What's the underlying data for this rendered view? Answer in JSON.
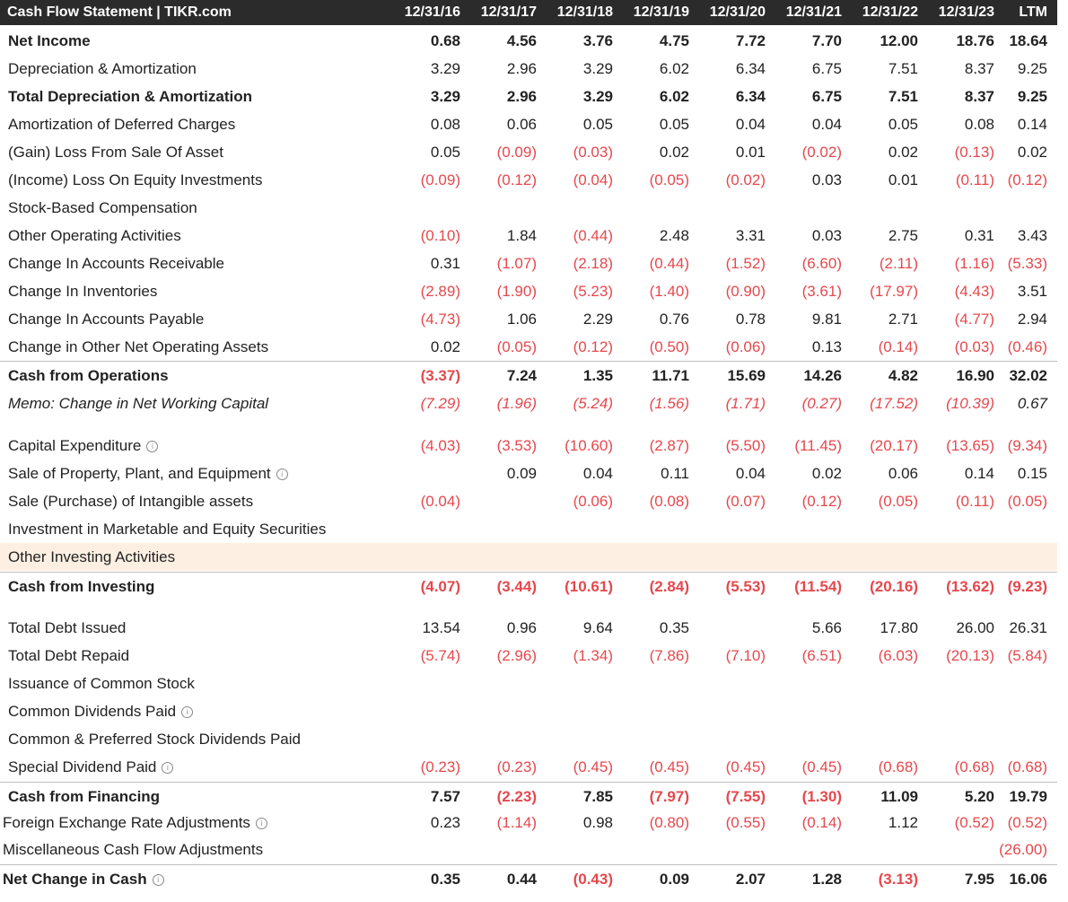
{
  "header": {
    "title": "Cash Flow Statement | TIKR.com",
    "periods": [
      "12/31/16",
      "12/31/17",
      "12/31/18",
      "12/31/19",
      "12/31/20",
      "12/31/21",
      "12/31/22",
      "12/31/23",
      "LTM"
    ]
  },
  "colors": {
    "header_bg": "#2b2b2b",
    "negative": "#e5484d",
    "highlight_row": "#fdf0e3"
  },
  "rows": [
    {
      "label": "Net Income",
      "style": "bold",
      "values": [
        "0.68",
        "4.56",
        "3.76",
        "4.75",
        "7.72",
        "7.70",
        "12.00",
        "18.76",
        "18.64"
      ]
    },
    {
      "label": "Depreciation & Amortization",
      "values": [
        "3.29",
        "2.96",
        "3.29",
        "6.02",
        "6.34",
        "6.75",
        "7.51",
        "8.37",
        "9.25"
      ]
    },
    {
      "label": "Total Depreciation & Amortization",
      "style": "bold",
      "values": [
        "3.29",
        "2.96",
        "3.29",
        "6.02",
        "6.34",
        "6.75",
        "7.51",
        "8.37",
        "9.25"
      ]
    },
    {
      "label": "Amortization of Deferred Charges",
      "values": [
        "0.08",
        "0.06",
        "0.05",
        "0.05",
        "0.04",
        "0.04",
        "0.05",
        "0.08",
        "0.14"
      ]
    },
    {
      "label": "(Gain) Loss From Sale Of Asset",
      "values": [
        "0.05",
        "(0.09)",
        "(0.03)",
        "0.02",
        "0.01",
        "(0.02)",
        "0.02",
        "(0.13)",
        "0.02"
      ]
    },
    {
      "label": "(Income) Loss On Equity Investments",
      "values": [
        "(0.09)",
        "(0.12)",
        "(0.04)",
        "(0.05)",
        "(0.02)",
        "0.03",
        "0.01",
        "(0.11)",
        "(0.12)"
      ]
    },
    {
      "label": "Stock-Based Compensation",
      "values": [
        "",
        "",
        "",
        "",
        "",
        "",
        "",
        "",
        ""
      ]
    },
    {
      "label": "Other Operating Activities",
      "values": [
        "(0.10)",
        "1.84",
        "(0.44)",
        "2.48",
        "3.31",
        "0.03",
        "2.75",
        "0.31",
        "3.43"
      ]
    },
    {
      "label": "Change In Accounts Receivable",
      "values": [
        "0.31",
        "(1.07)",
        "(2.18)",
        "(0.44)",
        "(1.52)",
        "(6.60)",
        "(2.11)",
        "(1.16)",
        "(5.33)"
      ]
    },
    {
      "label": "Change In Inventories",
      "values": [
        "(2.89)",
        "(1.90)",
        "(5.23)",
        "(1.40)",
        "(0.90)",
        "(3.61)",
        "(17.97)",
        "(4.43)",
        "3.51"
      ]
    },
    {
      "label": "Change In Accounts Payable",
      "values": [
        "(4.73)",
        "1.06",
        "2.29",
        "0.76",
        "0.78",
        "9.81",
        "2.71",
        "(4.77)",
        "2.94"
      ]
    },
    {
      "label": "Change in Other Net Operating Assets",
      "values": [
        "0.02",
        "(0.05)",
        "(0.12)",
        "(0.50)",
        "(0.06)",
        "0.13",
        "(0.14)",
        "(0.03)",
        "(0.46)"
      ]
    },
    {
      "label": "Cash from Operations",
      "style": "bold",
      "values": [
        "(3.37)",
        "7.24",
        "1.35",
        "11.71",
        "15.69",
        "14.26",
        "4.82",
        "16.90",
        "32.02"
      ]
    },
    {
      "label": "Memo: Change in Net Working Capital",
      "style": "italic",
      "values": [
        "(7.29)",
        "(1.96)",
        "(5.24)",
        "(1.56)",
        "(1.71)",
        "(0.27)",
        "(17.52)",
        "(10.39)",
        "0.67"
      ]
    },
    {
      "label": "Capital Expenditure",
      "info": true,
      "values": [
        "(4.03)",
        "(3.53)",
        "(10.60)",
        "(2.87)",
        "(5.50)",
        "(11.45)",
        "(20.17)",
        "(13.65)",
        "(9.34)"
      ]
    },
    {
      "label": "Sale of Property, Plant, and Equipment",
      "info": true,
      "values": [
        "",
        "0.09",
        "0.04",
        "0.11",
        "0.04",
        "0.02",
        "0.06",
        "0.14",
        "0.15"
      ]
    },
    {
      "label": "Sale (Purchase) of Intangible assets",
      "values": [
        "(0.04)",
        "",
        "(0.06)",
        "(0.08)",
        "(0.07)",
        "(0.12)",
        "(0.05)",
        "(0.11)",
        "(0.05)"
      ]
    },
    {
      "label": "Investment in Marketable and Equity Securities",
      "values": [
        "",
        "",
        "",
        "",
        "",
        "",
        "",
        "",
        ""
      ]
    },
    {
      "label": "Other Investing Activities",
      "style": "highlight",
      "values": [
        "",
        "",
        "",
        "",
        "",
        "",
        "",
        "",
        ""
      ]
    },
    {
      "label": "Cash from Investing",
      "style": "bold",
      "values": [
        "(4.07)",
        "(3.44)",
        "(10.61)",
        "(2.84)",
        "(5.53)",
        "(11.54)",
        "(20.16)",
        "(13.62)",
        "(9.23)"
      ]
    },
    {
      "label": "Total Debt Issued",
      "values": [
        "13.54",
        "0.96",
        "9.64",
        "0.35",
        "",
        "5.66",
        "17.80",
        "26.00",
        "26.31"
      ]
    },
    {
      "label": "Total Debt Repaid",
      "values": [
        "(5.74)",
        "(2.96)",
        "(1.34)",
        "(7.86)",
        "(7.10)",
        "(6.51)",
        "(6.03)",
        "(20.13)",
        "(5.84)"
      ]
    },
    {
      "label": "Issuance of Common Stock",
      "values": [
        "",
        "",
        "",
        "",
        "",
        "",
        "",
        "",
        ""
      ]
    },
    {
      "label": "Common Dividends Paid",
      "info": true,
      "values": [
        "",
        "",
        "",
        "",
        "",
        "",
        "",
        "",
        ""
      ]
    },
    {
      "label": "Common & Preferred Stock Dividends Paid",
      "values": [
        "",
        "",
        "",
        "",
        "",
        "",
        "",
        "",
        ""
      ]
    },
    {
      "label": "Special Dividend Paid",
      "info": true,
      "values": [
        "(0.23)",
        "(0.23)",
        "(0.45)",
        "(0.45)",
        "(0.45)",
        "(0.45)",
        "(0.68)",
        "(0.68)",
        "(0.68)"
      ]
    },
    {
      "label": "Cash from Financing",
      "style": "bold",
      "values": [
        "7.57",
        "(2.23)",
        "7.85",
        "(7.97)",
        "(7.55)",
        "(1.30)",
        "11.09",
        "5.20",
        "19.79"
      ]
    },
    {
      "label": "Foreign Exchange Rate Adjustments",
      "info": true,
      "style": "outdent",
      "values": [
        "0.23",
        "(1.14)",
        "0.98",
        "(0.80)",
        "(0.55)",
        "(0.14)",
        "1.12",
        "(0.52)",
        "(0.52)"
      ]
    },
    {
      "label": "Miscellaneous Cash Flow Adjustments",
      "style": "outdent",
      "values": [
        "",
        "",
        "",
        "",
        "",
        "",
        "",
        "",
        "(26.00)"
      ]
    },
    {
      "label": "Net Change in Cash",
      "info": true,
      "style": "bold outdent",
      "values": [
        "0.35",
        "0.44",
        "(0.43)",
        "0.09",
        "2.07",
        "1.28",
        "(3.13)",
        "7.95",
        "16.06"
      ]
    }
  ]
}
